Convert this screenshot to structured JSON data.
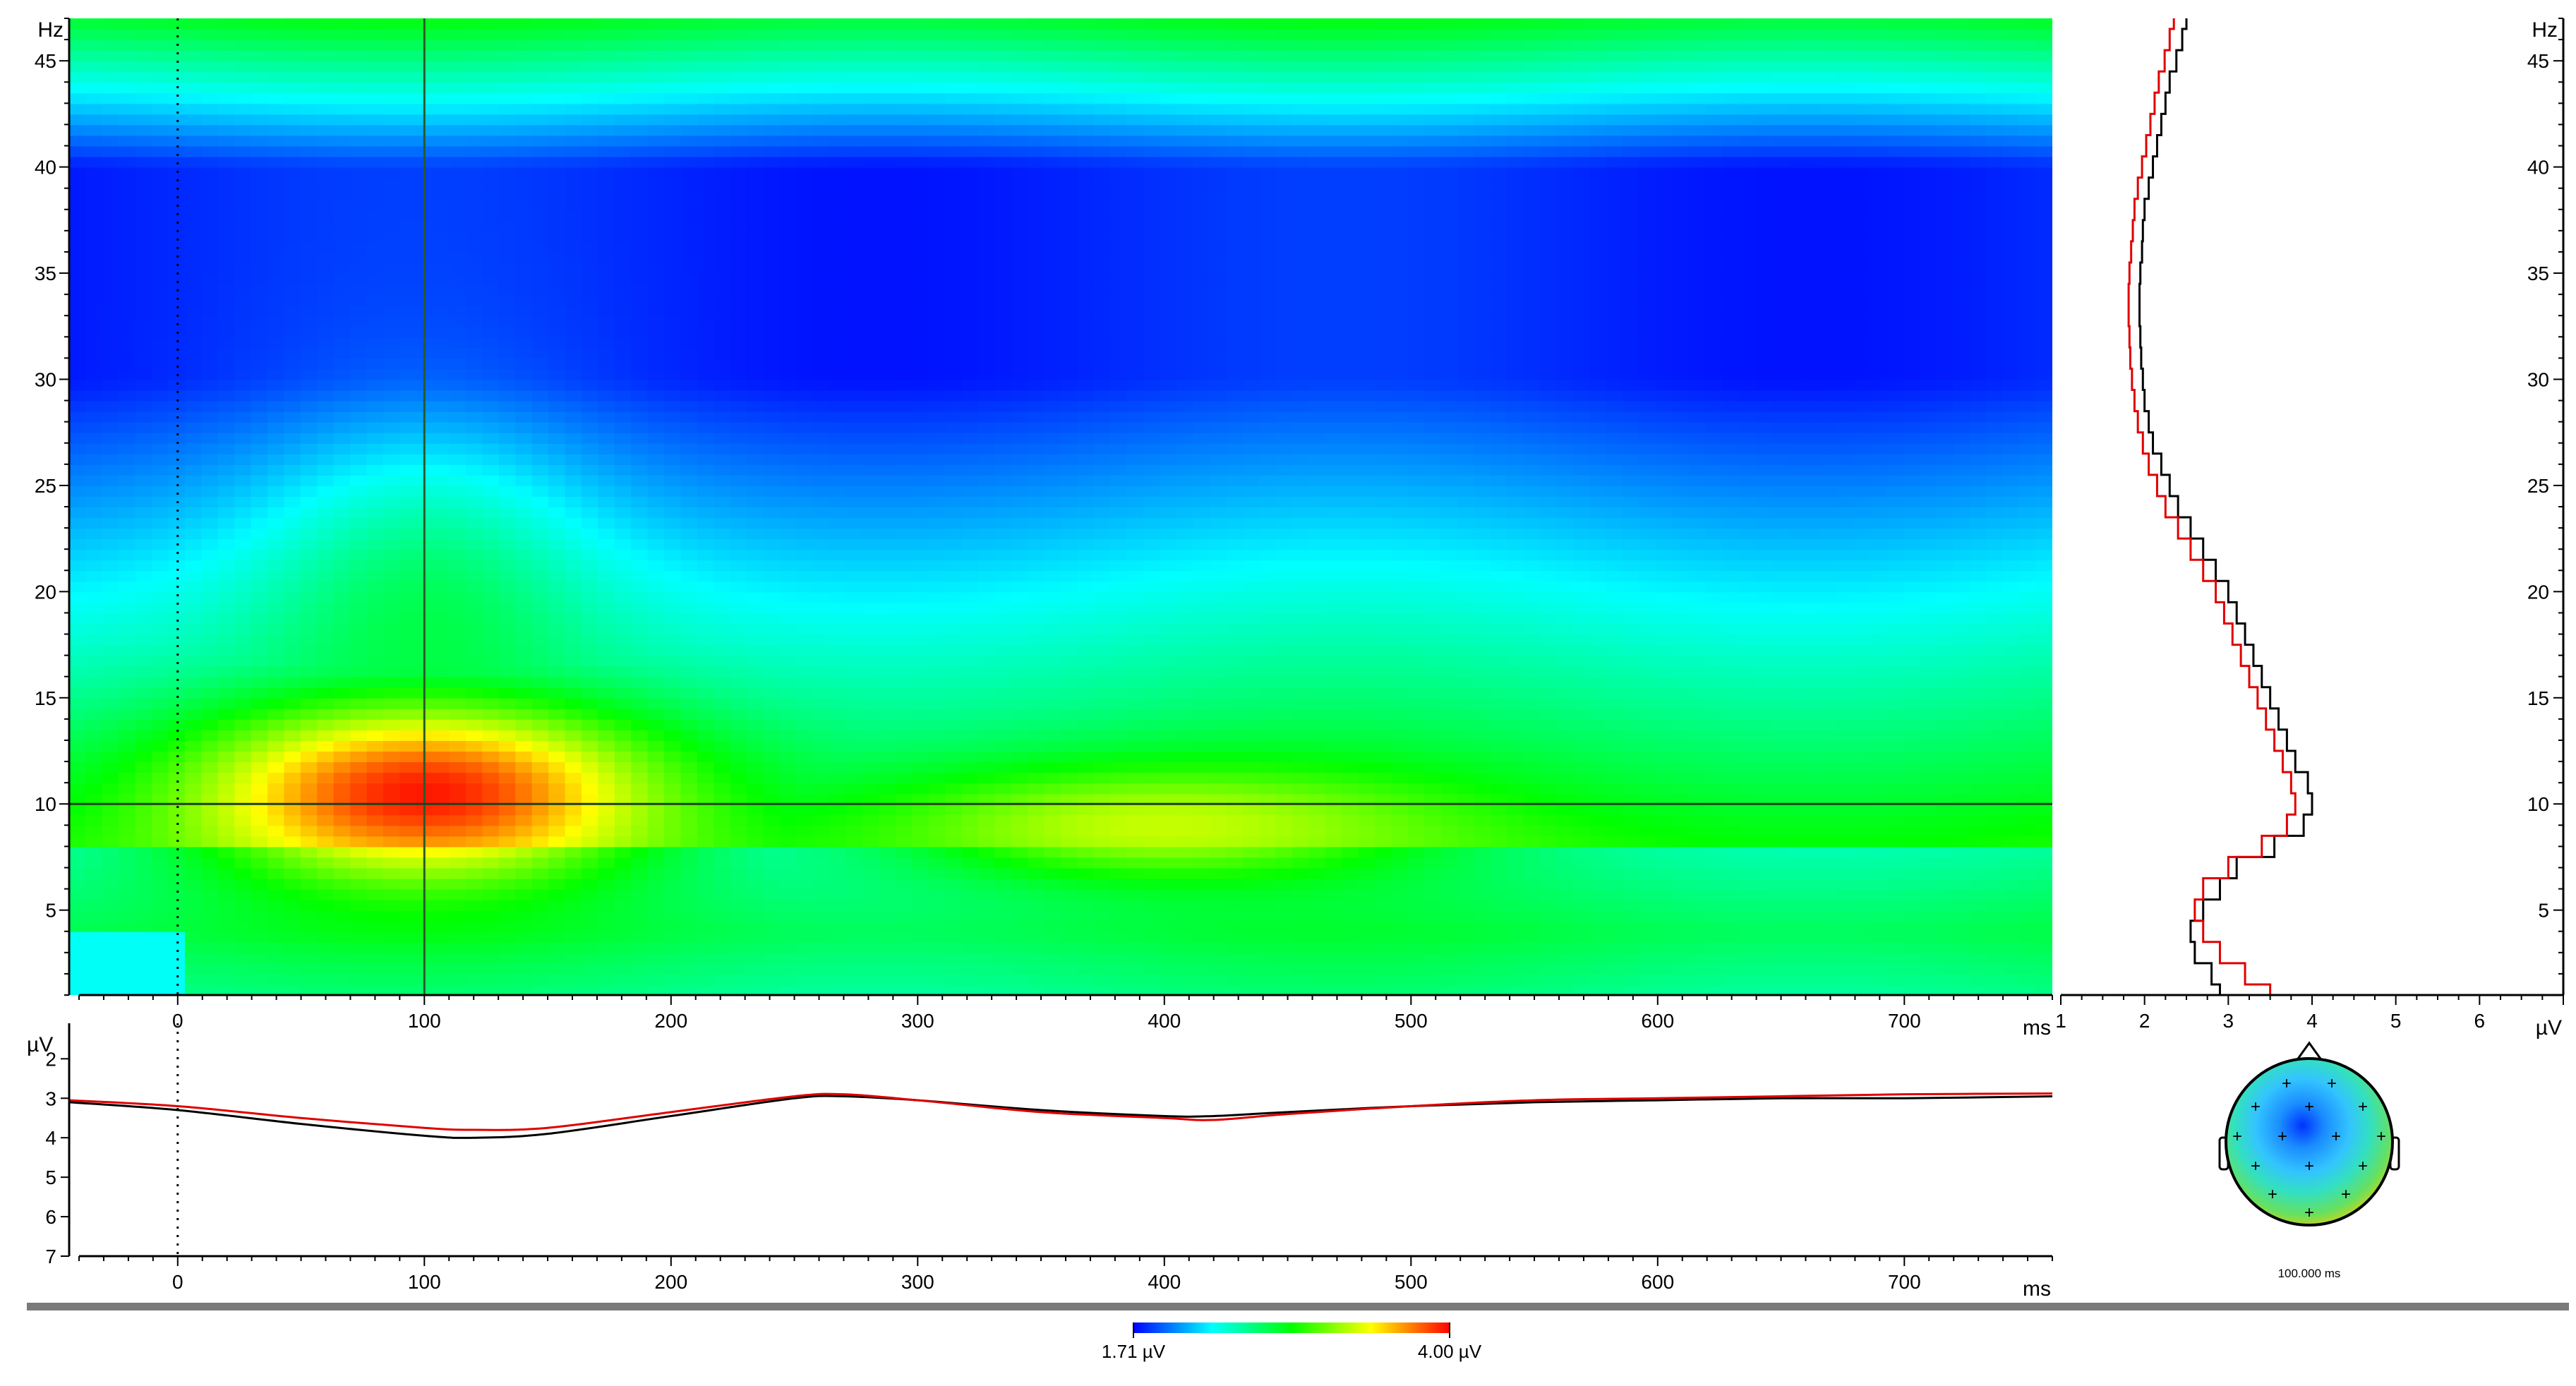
{
  "chart_data": [
    {
      "type": "heatmap",
      "title": "",
      "x_unit": "ms",
      "y_unit": "Hz",
      "xlim": [
        -44,
        760
      ],
      "ylim": [
        1,
        47
      ],
      "x_ticks": [
        0,
        100,
        200,
        300,
        400,
        500,
        600,
        700
      ],
      "y_ticks": [
        5,
        10,
        15,
        20,
        25,
        30,
        35,
        40,
        45
      ],
      "cursor": {
        "time_ms": 100,
        "freq_hz": 10
      },
      "stimulus_onset_ms": 0,
      "blobs": [
        {
          "t": 100,
          "f": 10.5,
          "st": 62,
          "sf": 2.8,
          "amp": 3.95
        },
        {
          "t": 400,
          "f": 9.0,
          "st": 75,
          "sf": 1.8,
          "amp": 3.3
        },
        {
          "t": 100,
          "f": 17,
          "st": 45,
          "sf": 6,
          "amp": 2.7
        }
      ]
    },
    {
      "type": "line",
      "x_unit": "µV",
      "y_unit": "Hz",
      "xlim": [
        1,
        7
      ],
      "ylim": [
        1,
        47
      ],
      "x_ticks": [
        1,
        2,
        3,
        4,
        5,
        6
      ],
      "y_ticks": [
        5,
        10,
        15,
        20,
        25,
        30,
        35,
        40,
        45
      ],
      "y": [
        1,
        2,
        3,
        4,
        5,
        6,
        7,
        8,
        9,
        10,
        11,
        12,
        13,
        14,
        15,
        16,
        17,
        18,
        19,
        20,
        21,
        22,
        23,
        24,
        25,
        26,
        27,
        28,
        29,
        30,
        31,
        32,
        33,
        34,
        35,
        36,
        37,
        38,
        39,
        40,
        41,
        42,
        43,
        44,
        45,
        46,
        47
      ],
      "series": [
        {
          "color": "#000000",
          "values": [
            2.9,
            2.8,
            2.6,
            2.55,
            2.7,
            2.9,
            3.1,
            3.55,
            3.9,
            4.0,
            3.95,
            3.8,
            3.7,
            3.6,
            3.5,
            3.4,
            3.3,
            3.2,
            3.1,
            3.0,
            2.85,
            2.7,
            2.55,
            2.4,
            2.3,
            2.2,
            2.1,
            2.05,
            2.0,
            1.98,
            1.96,
            1.95,
            1.94,
            1.94,
            1.95,
            1.97,
            1.98,
            2.0,
            2.05,
            2.1,
            2.15,
            2.2,
            2.25,
            2.3,
            2.38,
            2.45,
            2.5
          ]
        },
        {
          "color": "#e00000",
          "values": [
            3.5,
            3.2,
            2.9,
            2.7,
            2.6,
            2.7,
            3.0,
            3.4,
            3.7,
            3.8,
            3.75,
            3.65,
            3.55,
            3.45,
            3.35,
            3.25,
            3.15,
            3.05,
            2.95,
            2.85,
            2.7,
            2.55,
            2.4,
            2.25,
            2.15,
            2.05,
            1.98,
            1.92,
            1.88,
            1.85,
            1.83,
            1.82,
            1.81,
            1.81,
            1.82,
            1.84,
            1.86,
            1.88,
            1.92,
            1.97,
            2.02,
            2.07,
            2.12,
            2.17,
            2.24,
            2.3,
            2.35
          ]
        }
      ]
    },
    {
      "type": "line",
      "x_unit": "ms",
      "y_unit": "µV",
      "xlim": [
        -44,
        760
      ],
      "ylim": [
        1.1,
        7
      ],
      "y_inverted": true,
      "x_ticks": [
        0,
        100,
        200,
        300,
        400,
        500,
        600,
        700
      ],
      "y_ticks": [
        2,
        3,
        4,
        5,
        6,
        7
      ],
      "x": [
        -44,
        0,
        50,
        100,
        120,
        150,
        200,
        250,
        270,
        300,
        350,
        400,
        420,
        450,
        500,
        550,
        600,
        650,
        700,
        760
      ],
      "series": [
        {
          "color": "#000000",
          "values": [
            3.1,
            3.3,
            3.65,
            3.95,
            4.0,
            3.9,
            3.45,
            3.0,
            2.95,
            3.05,
            3.3,
            3.45,
            3.45,
            3.35,
            3.2,
            3.1,
            3.05,
            3.0,
            3.0,
            2.95
          ]
        },
        {
          "color": "#e00000",
          "values": [
            3.05,
            3.2,
            3.5,
            3.75,
            3.8,
            3.75,
            3.35,
            2.95,
            2.9,
            3.05,
            3.35,
            3.5,
            3.55,
            3.4,
            3.2,
            3.05,
            3.0,
            2.95,
            2.9,
            2.88
          ]
        }
      ]
    }
  ],
  "topomap": {
    "label": "100.000 ms",
    "colors": [
      "#0033ff",
      "#1a8cff",
      "#33c4ff",
      "#33e0c0",
      "#66e060",
      "#f0d000",
      "#ff2000"
    ]
  },
  "colorbar": {
    "min_label": "1.71 µV",
    "max_label": "4.00 µV",
    "stops": [
      "#0000ff",
      "#00ffff",
      "#00ff00",
      "#ffff00",
      "#ff0000"
    ]
  }
}
